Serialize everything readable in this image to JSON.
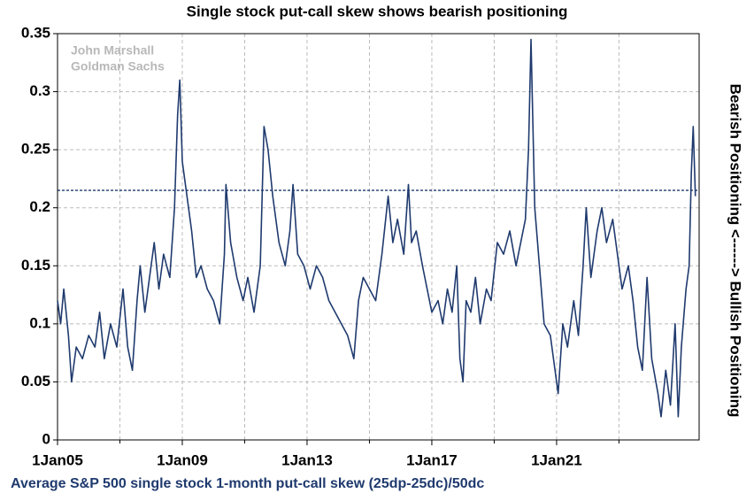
{
  "chart_data": {
    "type": "line",
    "title": "Single stock put-call skew shows bearish positioning",
    "watermark": [
      "John Marshall",
      "Goldman Sachs"
    ],
    "y2_label": "Bearish Positioning <------> Bullish Positioning",
    "footer": "Average S&P 500 single stock 1-month put-call skew (25dp-25dc)/50dc",
    "xlim": [
      2005,
      2025.57
    ],
    "xticks": [
      {
        "value": 2005,
        "label": "1Jan05"
      },
      {
        "value": 2009,
        "label": "1Jan09"
      },
      {
        "value": 2013,
        "label": "1Jan13"
      },
      {
        "value": 2017,
        "label": "1Jan17"
      },
      {
        "value": 2021,
        "label": "1Jan21"
      }
    ],
    "xminor": [
      2007,
      2011,
      2015,
      2019,
      2023
    ],
    "ylim": [
      0,
      0.35
    ],
    "yticks": [
      0,
      0.05,
      0.1,
      0.15,
      0.2,
      0.25,
      0.3,
      0.35
    ],
    "grid": true,
    "hline": 0.215,
    "color": "#1f3a6e",
    "x": [
      2005.0,
      2005.1,
      2005.2,
      2005.35,
      2005.45,
      2005.6,
      2005.8,
      2006.0,
      2006.2,
      2006.35,
      2006.5,
      2006.7,
      2006.9,
      2007.1,
      2007.25,
      2007.4,
      2007.55,
      2007.65,
      2007.8,
      2007.95,
      2008.1,
      2008.25,
      2008.4,
      2008.6,
      2008.75,
      2008.85,
      2008.92,
      2009.0,
      2009.15,
      2009.3,
      2009.45,
      2009.6,
      2009.8,
      2010.0,
      2010.2,
      2010.35,
      2010.4,
      2010.55,
      2010.75,
      2010.95,
      2011.1,
      2011.3,
      2011.5,
      2011.62,
      2011.75,
      2011.9,
      2012.1,
      2012.3,
      2012.45,
      2012.55,
      2012.7,
      2012.9,
      2013.1,
      2013.3,
      2013.5,
      2013.7,
      2013.9,
      2014.1,
      2014.3,
      2014.5,
      2014.65,
      2014.8,
      2015.0,
      2015.2,
      2015.4,
      2015.6,
      2015.75,
      2015.9,
      2016.1,
      2016.25,
      2016.35,
      2016.5,
      2016.7,
      2016.85,
      2017.0,
      2017.2,
      2017.35,
      2017.5,
      2017.65,
      2017.8,
      2017.9,
      2018.0,
      2018.1,
      2018.25,
      2018.4,
      2018.55,
      2018.75,
      2018.9,
      2019.1,
      2019.3,
      2019.5,
      2019.7,
      2019.85,
      2020.0,
      2020.1,
      2020.18,
      2020.3,
      2020.45,
      2020.6,
      2020.8,
      2020.95,
      2021.05,
      2021.2,
      2021.35,
      2021.55,
      2021.7,
      2021.85,
      2021.95,
      2022.1,
      2022.3,
      2022.45,
      2022.6,
      2022.8,
      2022.95,
      2023.1,
      2023.3,
      2023.45,
      2023.6,
      2023.75,
      2023.9,
      2024.05,
      2024.25,
      2024.35,
      2024.5,
      2024.65,
      2024.8,
      2024.9,
      2025.0,
      2025.15,
      2025.25,
      2025.32,
      2025.38,
      2025.45
    ],
    "values": [
      0.12,
      0.1,
      0.13,
      0.09,
      0.05,
      0.08,
      0.07,
      0.09,
      0.08,
      0.11,
      0.07,
      0.1,
      0.08,
      0.13,
      0.08,
      0.06,
      0.12,
      0.15,
      0.11,
      0.14,
      0.17,
      0.13,
      0.16,
      0.14,
      0.2,
      0.28,
      0.31,
      0.24,
      0.21,
      0.18,
      0.14,
      0.15,
      0.13,
      0.12,
      0.1,
      0.16,
      0.22,
      0.17,
      0.14,
      0.12,
      0.14,
      0.11,
      0.15,
      0.27,
      0.25,
      0.21,
      0.17,
      0.15,
      0.18,
      0.22,
      0.16,
      0.15,
      0.13,
      0.15,
      0.14,
      0.12,
      0.11,
      0.1,
      0.09,
      0.07,
      0.12,
      0.14,
      0.13,
      0.12,
      0.16,
      0.21,
      0.17,
      0.19,
      0.16,
      0.22,
      0.17,
      0.18,
      0.15,
      0.13,
      0.11,
      0.12,
      0.1,
      0.13,
      0.11,
      0.15,
      0.07,
      0.05,
      0.12,
      0.11,
      0.14,
      0.1,
      0.13,
      0.12,
      0.17,
      0.16,
      0.18,
      0.15,
      0.17,
      0.19,
      0.25,
      0.345,
      0.2,
      0.15,
      0.1,
      0.09,
      0.06,
      0.04,
      0.1,
      0.08,
      0.12,
      0.09,
      0.15,
      0.2,
      0.14,
      0.18,
      0.2,
      0.17,
      0.19,
      0.16,
      0.13,
      0.15,
      0.12,
      0.08,
      0.06,
      0.14,
      0.07,
      0.04,
      0.02,
      0.06,
      0.03,
      0.1,
      0.02,
      0.08,
      0.13,
      0.15,
      0.23,
      0.27,
      0.21
    ]
  }
}
